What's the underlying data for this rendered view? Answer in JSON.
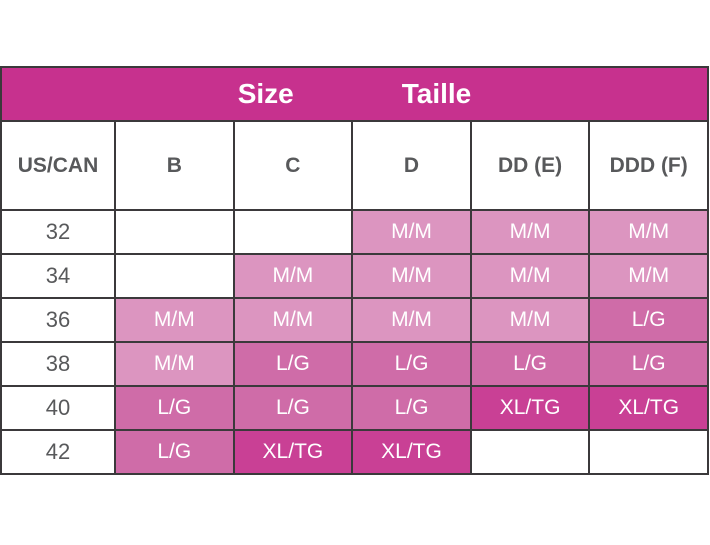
{
  "band": {
    "size_label": "Size",
    "taille_label": "Taille"
  },
  "table": {
    "columns": [
      "US/CAN",
      "B",
      "C",
      "D",
      "DD (E)",
      "DDD (F)"
    ],
    "rows": [
      {
        "label": "32",
        "cells": [
          "",
          "",
          "M/M",
          "M/M",
          "M/M"
        ]
      },
      {
        "label": "34",
        "cells": [
          "",
          "M/M",
          "M/M",
          "M/M",
          "M/M"
        ]
      },
      {
        "label": "36",
        "cells": [
          "M/M",
          "M/M",
          "M/M",
          "M/M",
          "L/G"
        ]
      },
      {
        "label": "38",
        "cells": [
          "M/M",
          "L/G",
          "L/G",
          "L/G",
          "L/G"
        ]
      },
      {
        "label": "40",
        "cells": [
          "L/G",
          "L/G",
          "L/G",
          "XL/TG",
          "XL/TG"
        ]
      },
      {
        "label": "42",
        "cells": [
          "L/G",
          "XL/TG",
          "XL/TG",
          "",
          ""
        ]
      }
    ]
  },
  "colors": {
    "band": "#c7318e",
    "border": "#3b393b",
    "header_text": "#58595b",
    "cell_text": "#ffffff",
    "M/M": "#dc95c0",
    "L/G": "#cf6ca8",
    "XL/TG": "#c94095",
    "empty": "#ffffff"
  },
  "chart_data": {
    "type": "table",
    "title": "Size Taille",
    "columns": [
      "US/CAN",
      "B",
      "C",
      "D",
      "DD (E)",
      "DDD (F)"
    ],
    "rows": [
      [
        "32",
        "",
        "",
        "M/M",
        "M/M",
        "M/M"
      ],
      [
        "34",
        "",
        "M/M",
        "M/M",
        "M/M",
        "M/M"
      ],
      [
        "36",
        "M/M",
        "M/M",
        "M/M",
        "M/M",
        "L/G"
      ],
      [
        "38",
        "M/M",
        "L/G",
        "L/G",
        "L/G",
        "L/G"
      ],
      [
        "40",
        "L/G",
        "L/G",
        "L/G",
        "XL/TG",
        "XL/TG"
      ],
      [
        "42",
        "L/G",
        "XL/TG",
        "XL/TG",
        "",
        ""
      ]
    ],
    "legend": {
      "M/M": "light pink cell",
      "L/G": "medium pink cell",
      "XL/TG": "dark magenta cell",
      "": "white empty cell"
    }
  }
}
